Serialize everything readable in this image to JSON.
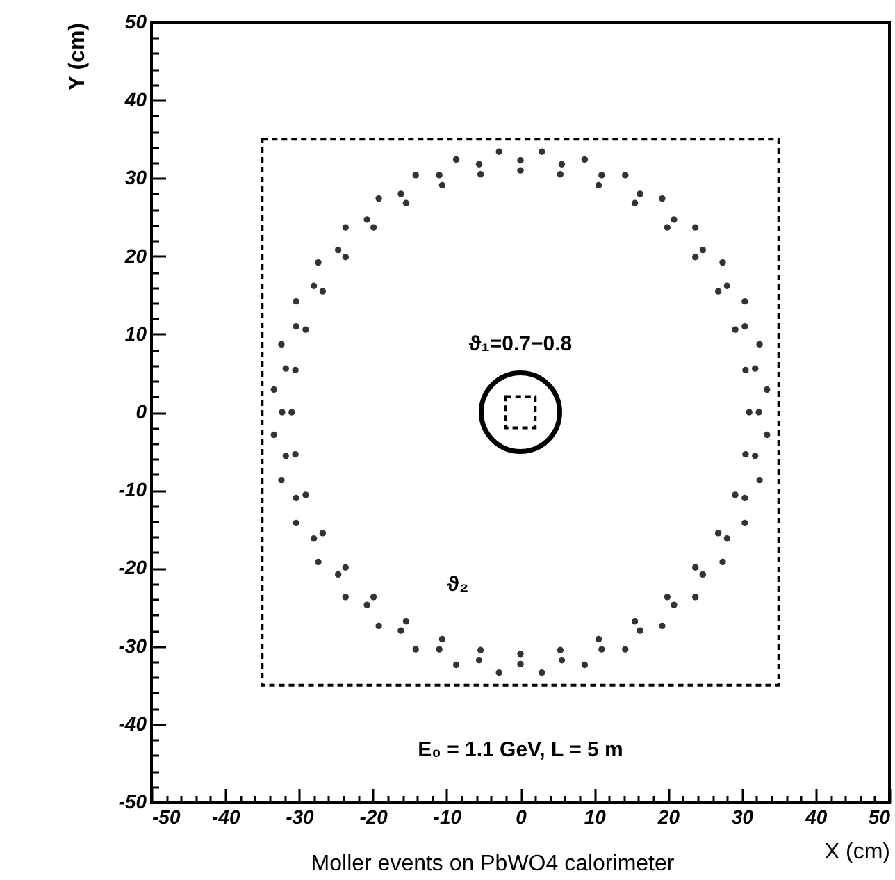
{
  "chart_data": {
    "type": "scatter",
    "marker": "circle",
    "xlabel": "X (cm)",
    "ylabel": "Y (cm)",
    "xlim": [
      -50,
      50
    ],
    "ylim": [
      -50,
      50
    ],
    "xticks": [
      -50,
      {
        "value": -48,
        "label": null
      },
      {
        "value": -46,
        "label": null
      },
      {
        "value": -44,
        "label": null
      },
      {
        "value": -42,
        "label": null
      },
      -40,
      {
        "value": -38,
        "label": null
      },
      {
        "value": -36,
        "label": null
      },
      {
        "value": -34,
        "label": null
      },
      {
        "value": -32,
        "label": null
      },
      -30,
      {
        "value": -28,
        "label": null
      },
      {
        "value": -26,
        "label": null
      },
      {
        "value": -24,
        "label": null
      },
      {
        "value": -22,
        "label": null
      },
      -20,
      {
        "value": -18,
        "label": null
      },
      {
        "value": -16,
        "label": null
      },
      {
        "value": -14,
        "label": null
      },
      {
        "value": -12,
        "label": null
      },
      -10,
      {
        "value": -8,
        "label": null
      },
      {
        "value": -6,
        "label": null
      },
      {
        "value": -4,
        "label": null
      },
      {
        "value": -2,
        "label": null
      },
      0,
      {
        "value": 2,
        "label": null
      },
      {
        "value": 4,
        "label": null
      },
      {
        "value": 6,
        "label": null
      },
      {
        "value": 8,
        "label": null
      },
      10,
      {
        "value": 12,
        "label": null
      },
      {
        "value": 14,
        "label": null
      },
      {
        "value": 16,
        "label": null
      },
      {
        "value": 18,
        "label": null
      },
      20,
      {
        "value": 22,
        "label": null
      },
      {
        "value": 24,
        "label": null
      },
      {
        "value": 26,
        "label": null
      },
      {
        "value": 28,
        "label": null
      },
      30,
      {
        "value": 32,
        "label": null
      },
      {
        "value": 34,
        "label": null
      },
      {
        "value": 36,
        "label": null
      },
      {
        "value": 38,
        "label": null
      },
      40,
      {
        "value": 42,
        "label": null
      },
      {
        "value": 44,
        "label": null
      },
      {
        "value": 46,
        "label": null
      },
      {
        "value": 48,
        "label": null
      },
      50
    ],
    "yticks": [
      -50,
      {
        "value": -48,
        "label": null
      },
      {
        "value": -46,
        "label": null
      },
      {
        "value": -44,
        "label": null
      },
      {
        "value": -42,
        "label": null
      },
      -40,
      {
        "value": -38,
        "label": null
      },
      {
        "value": -36,
        "label": null
      },
      {
        "value": -34,
        "label": null
      },
      {
        "value": -32,
        "label": null
      },
      -30,
      {
        "value": -28,
        "label": null
      },
      {
        "value": -26,
        "label": null
      },
      {
        "value": -24,
        "label": null
      },
      {
        "value": -22,
        "label": null
      },
      -20,
      {
        "value": -18,
        "label": null
      },
      {
        "value": -16,
        "label": null
      },
      {
        "value": -14,
        "label": null
      },
      {
        "value": -12,
        "label": null
      },
      -10,
      {
        "value": -8,
        "label": null
      },
      {
        "value": -6,
        "label": null
      },
      {
        "value": -4,
        "label": null
      },
      {
        "value": -2,
        "label": null
      },
      0,
      {
        "value": 2,
        "label": null
      },
      {
        "value": 4,
        "label": null
      },
      {
        "value": 6,
        "label": null
      },
      {
        "value": 8,
        "label": null
      },
      10,
      {
        "value": 12,
        "label": null
      },
      {
        "value": 14,
        "label": null
      },
      {
        "value": 16,
        "label": null
      },
      {
        "value": 18,
        "label": null
      },
      20,
      {
        "value": 22,
        "label": null
      },
      {
        "value": 24,
        "label": null
      },
      {
        "value": 26,
        "label": null
      },
      {
        "value": 28,
        "label": null
      },
      30,
      {
        "value": 32,
        "label": null
      },
      {
        "value": 34,
        "label": null
      },
      {
        "value": 36,
        "label": null
      },
      {
        "value": 38,
        "label": null
      },
      40,
      {
        "value": 42,
        "label": null
      },
      {
        "value": 44,
        "label": null
      },
      {
        "value": 46,
        "label": null
      },
      {
        "value": 48,
        "label": null
      },
      50
    ],
    "series": [
      {
        "color": "#333333",
        "x": [
          31,
          30.5,
          29.1,
          26.8,
          23.7,
          19.9,
          15.5,
          10.6,
          5.4,
          33.4,
          32.4,
          30.4,
          27.4,
          23.7,
          19.2,
          14.2,
          8.7,
          2.9,
          32.3,
          31.8,
          30.4,
          28.0,
          24.7,
          20.8,
          16.2,
          11.0,
          5.6,
          0,
          -5.4,
          -10.6,
          -15.5,
          -19.9,
          -23.7,
          -26.8,
          -29.1,
          -30.5,
          -2.9,
          -8.7,
          -14.2,
          -19.2,
          -23.7,
          -27.4,
          -30.4,
          -32.4,
          -33.4,
          0,
          -5.6,
          -11.0,
          -16.2,
          -20.8,
          -24.7,
          -28.0,
          -30.4,
          -31.8,
          -31,
          -30.5,
          -29.1,
          -26.8,
          -23.7,
          -19.9,
          -15.5,
          -10.6,
          -5.4,
          -33.4,
          -32.4,
          -30.4,
          -27.4,
          -23.7,
          -19.2,
          -14.2,
          -8.7,
          -2.9,
          -32.3,
          -31.8,
          -30.4,
          -28.0,
          -24.7,
          -20.8,
          -16.2,
          -11.0,
          -5.6,
          0,
          5.4,
          10.6,
          15.5,
          19.9,
          23.7,
          26.8,
          29.1,
          30.5,
          2.9,
          8.7,
          14.2,
          19.2,
          23.7,
          27.4,
          30.4,
          32.4,
          33.4,
          0,
          5.6,
          11.0,
          16.2,
          20.8,
          24.7,
          28.0,
          30.4,
          31.8
        ],
        "values": [
          0,
          5.4,
          10.6,
          15.5,
          19.9,
          23.7,
          26.8,
          29.1,
          30.5,
          2.9,
          8.7,
          14.2,
          19.2,
          23.7,
          27.4,
          30.4,
          32.4,
          33.4,
          0,
          5.6,
          11.0,
          16.2,
          20.8,
          24.7,
          28.0,
          30.4,
          31.8,
          31,
          30.5,
          29.1,
          26.8,
          23.7,
          19.9,
          15.5,
          10.6,
          5.4,
          33.4,
          32.4,
          30.4,
          27.4,
          23.7,
          19.2,
          14.2,
          8.7,
          2.9,
          32.3,
          31.8,
          30.4,
          28.0,
          24.7,
          20.8,
          16.2,
          11.0,
          5.6,
          0,
          -5.4,
          -10.6,
          -15.5,
          -19.9,
          -23.7,
          -26.8,
          -29.1,
          -30.5,
          -2.9,
          -8.7,
          -14.2,
          -19.2,
          -23.7,
          -27.4,
          -30.4,
          -32.4,
          -33.4,
          0,
          -5.6,
          -11.0,
          -16.2,
          -20.8,
          -24.7,
          -28.0,
          -30.4,
          -31.8,
          -31,
          -30.5,
          -29.1,
          -26.8,
          -23.7,
          -19.9,
          -15.5,
          -10.6,
          -5.4,
          -33.4,
          -32.4,
          -30.4,
          -27.4,
          -23.7,
          -19.2,
          -14.2,
          -8.7,
          -2.9,
          -32.3,
          -31.8,
          -30.4,
          -28.0,
          -24.7,
          -20.8,
          -16.2,
          -11.0,
          -5.6
        ]
      }
    ],
    "annotations": [
      "ϑ₁=0.7−0.8",
      "ϑ₂",
      "E₀ = 1.1 GeV,   L = 5 m",
      "Moller events on PbWO4 calorimeter"
    ]
  }
}
